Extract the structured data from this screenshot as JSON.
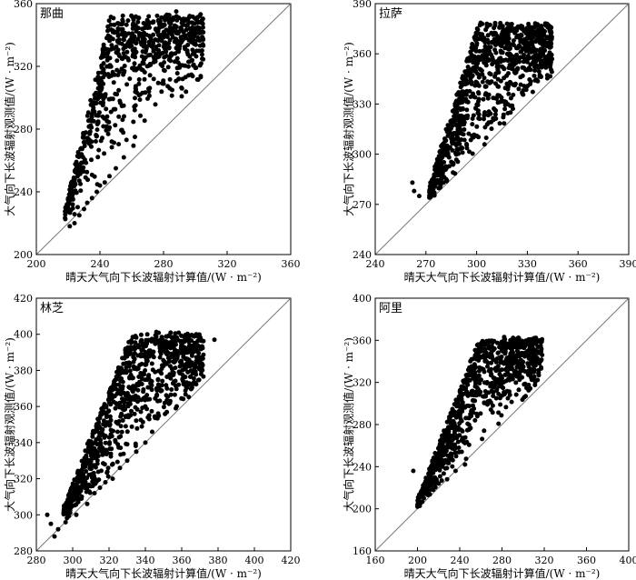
{
  "chart_data": [
    {
      "type": "scatter",
      "title": "那曲",
      "xlabel": "晴天大气向下长波辐射计算值/(W · m⁻²)",
      "ylabel": "大气向下长波辐射观测值/(W · m⁻²)",
      "xlim": [
        200,
        360
      ],
      "ylim": [
        200,
        360
      ],
      "xticks": [
        200,
        240,
        280,
        320,
        360
      ],
      "yticks": [
        200,
        240,
        280,
        320,
        360
      ],
      "diagonal": "y = x",
      "cloud": {
        "n": 800,
        "seed": 11,
        "xmin": 218,
        "xmax": 305,
        "base_gap": 2,
        "spread": 0.45,
        "upper_coef": 3.4,
        "upper_max": 352
      },
      "series": [
        {
          "x": [
            221,
            224,
            227,
            230,
            232,
            235,
            238,
            240,
            243,
            246,
            250,
            255,
            262,
            272,
            276,
            280,
            284,
            288
          ],
          "y": [
            218,
            220,
            225,
            229,
            233,
            236,
            240,
            244,
            246,
            250,
            255,
            262,
            275,
            338,
            342,
            346,
            350,
            355
          ]
        }
      ]
    },
    {
      "type": "scatter",
      "title": "拉萨",
      "xlabel": "晴天大气向下长波辐射计算值/(W · m⁻²)",
      "ylabel": "大气向下长波辐射观测值/(W · m⁻²)",
      "xlim": [
        240,
        390
      ],
      "ylim": [
        240,
        390
      ],
      "xticks": [
        240,
        270,
        300,
        330,
        360,
        390
      ],
      "yticks": [
        240,
        270,
        300,
        330,
        360,
        390
      ],
      "diagonal": "y = x",
      "cloud": {
        "n": 950,
        "seed": 22,
        "xmin": 272,
        "xmax": 345,
        "base_gap": 0,
        "spread": 0.55,
        "upper_coef": 2.4,
        "upper_max": 378
      },
      "series": [
        {
          "x": [
            262,
            263,
            266,
            272,
            275,
            278,
            282,
            286,
            292,
            300,
            308,
            315,
            318,
            330,
            340
          ],
          "y": [
            283,
            278,
            275,
            274,
            277,
            280,
            285,
            289,
            345,
            352,
            360,
            368,
            378,
            372,
            362
          ]
        }
      ]
    },
    {
      "type": "scatter",
      "title": "林芝",
      "xlabel": "晴天大气向下长波辐射计算值/(W · m⁻²)",
      "ylabel": "大气向下长波辐射观测值/(W · m⁻²)",
      "xlim": [
        280,
        420
      ],
      "ylim": [
        280,
        420
      ],
      "xticks": [
        280,
        300,
        320,
        340,
        360,
        380,
        400,
        420
      ],
      "yticks": [
        280,
        300,
        320,
        340,
        360,
        380,
        400,
        420
      ],
      "diagonal": "y = x",
      "cloud": {
        "n": 950,
        "seed": 33,
        "xmin": 295,
        "xmax": 372,
        "base_gap": 1,
        "spread": 0.6,
        "upper_coef": 1.6,
        "upper_max": 400
      },
      "series": [
        {
          "x": [
            286,
            288,
            290,
            292,
            295,
            298,
            300,
            302,
            305,
            308,
            312,
            315,
            318,
            322,
            326,
            330,
            335,
            340,
            368,
            378
          ],
          "y": [
            300,
            295,
            288,
            292,
            301,
            303,
            305,
            300,
            310,
            306,
            312,
            315,
            318,
            320,
            326,
            330,
            335,
            340,
            400,
            397
          ]
        }
      ]
    },
    {
      "type": "scatter",
      "title": "阿里",
      "xlabel": "晴天大气向下长波辐射计算值/(W · m⁻²)",
      "ylabel": "大气向下长波辐射观测值/(W · m⁻²)",
      "xlim": [
        160,
        400
      ],
      "ylim": [
        160,
        400
      ],
      "xticks": [
        160,
        200,
        240,
        280,
        320,
        360,
        400
      ],
      "yticks": [
        160,
        200,
        240,
        280,
        320,
        360,
        400
      ],
      "diagonal": "y = x",
      "cloud": {
        "n": 900,
        "seed": 44,
        "xmin": 200,
        "xmax": 318,
        "base_gap": 1,
        "spread": 0.5,
        "upper_coef": 1.6,
        "upper_max": 362
      },
      "series": [
        {
          "x": [
            196,
            200,
            203,
            206,
            210,
            215,
            220,
            228,
            236,
            245,
            288,
            292,
            296,
            305
          ],
          "y": [
            236,
            202,
            206,
            210,
            213,
            218,
            224,
            228,
            236,
            242,
            360,
            356,
            362,
            345
          ]
        }
      ]
    }
  ]
}
